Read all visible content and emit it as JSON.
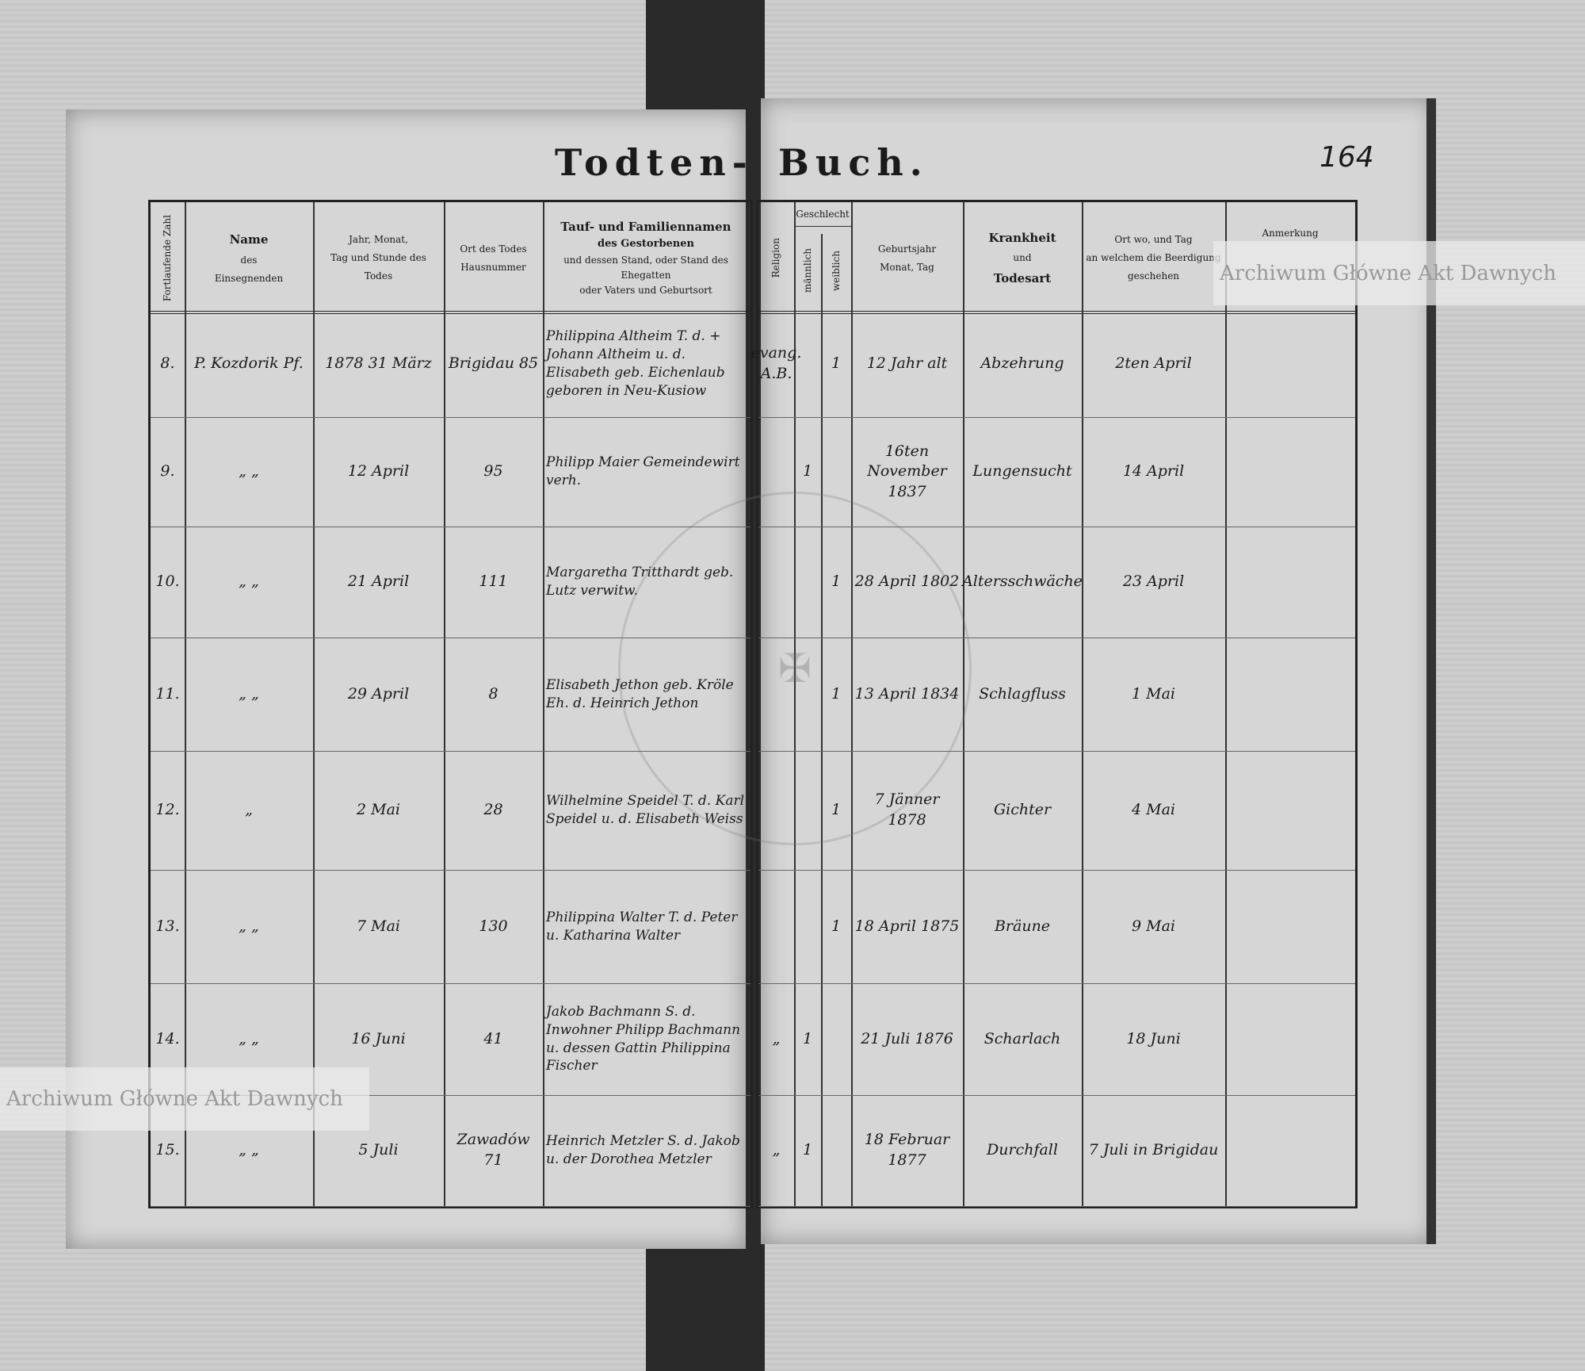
{
  "header": {
    "title_left": "Todten-",
    "title_right": "Buch.",
    "page_number": "164"
  },
  "columns_left": {
    "nr": "Fortlaufende Zahl",
    "name_title": "Name",
    "name_sub1": "des",
    "name_sub2": "Einsegnenden",
    "date1": "Jahr, Monat,",
    "date2": "Tag und Stunde des",
    "date3": "Todes",
    "place1": "Ort des Todes",
    "place2": "Hausnummer",
    "deceased_title": "Tauf- und Familiennamen",
    "deceased_sub": "des Gestorbenen",
    "deceased_2": "und dessen Stand, oder Stand des Ehegatten",
    "deceased_3": "oder Vaters und Geburtsort"
  },
  "columns_right": {
    "religion": "Religion",
    "sex": "Geschlecht",
    "male": "männlich",
    "female": "weiblich",
    "birth1": "Geburtsjahr",
    "birth2": "Monat, Tag",
    "illness1": "Krankheit",
    "illness2": "und",
    "illness3": "Todesart",
    "burial1": "Ort wo, und Tag",
    "burial2": "an welchem die Beerdigung",
    "burial3": "geschehen",
    "remark": "Anmerkung"
  },
  "rows": [
    {
      "nr": "8.",
      "priest": "P. Kozdorik Pf.",
      "date": "1878 31 März",
      "place": "Brigidau 85",
      "deceased": "Philippina Altheim T. d. + Johann Altheim u. d. Elisabeth geb. Eichenlaub geboren in Neu-Kusiow",
      "religion": "evang. A.B.",
      "male": "",
      "female": "1",
      "birth": "12 Jahr alt",
      "illness": "Abzehrung",
      "burial": "2ten April"
    },
    {
      "nr": "9.",
      "priest": "„ „",
      "date": "12 April",
      "place": "95",
      "deceased": "Philipp Maier Gemeindewirt verh.",
      "religion": "",
      "male": "1",
      "female": "",
      "birth": "16ten November 1837",
      "illness": "Lungensucht",
      "burial": "14 April"
    },
    {
      "nr": "10.",
      "priest": "„ „",
      "date": "21 April",
      "place": "111",
      "deceased": "Margaretha Tritthardt geb. Lutz verwitw.",
      "religion": "",
      "male": "",
      "female": "1",
      "birth": "28 April 1802",
      "illness": "Altersschwäche",
      "burial": "23 April"
    },
    {
      "nr": "11.",
      "priest": "„ „",
      "date": "29 April",
      "place": "8",
      "deceased": "Elisabeth Jethon geb. Kröle Eh. d. Heinrich Jethon",
      "religion": "",
      "male": "",
      "female": "1",
      "birth": "13 April 1834",
      "illness": "Schlagfluss",
      "burial": "1 Mai"
    },
    {
      "nr": "12.",
      "priest": "„",
      "date": "2 Mai",
      "place": "28",
      "deceased": "Wilhelmine Speidel T. d. Karl Speidel u. d. Elisabeth Weiss",
      "religion": "",
      "male": "",
      "female": "1",
      "birth": "7 Jänner 1878",
      "illness": "Gichter",
      "burial": "4 Mai"
    },
    {
      "nr": "13.",
      "priest": "„ „",
      "date": "7 Mai",
      "place": "130",
      "deceased": "Philippina Walter T. d. Peter u. Katharina Walter",
      "religion": "",
      "male": "",
      "female": "1",
      "birth": "18 April 1875",
      "illness": "Bräune",
      "burial": "9 Mai"
    },
    {
      "nr": "14.",
      "priest": "„ „",
      "date": "16 Juni",
      "place": "41",
      "deceased": "Jakob Bachmann S. d. Inwohner Philipp Bachmann u. dessen Gattin Philippina Fischer",
      "religion": "„",
      "male": "1",
      "female": "",
      "birth": "21 Juli 1876",
      "illness": "Scharlach",
      "burial": "18 Juni"
    },
    {
      "nr": "15.",
      "priest": "„ „",
      "date": "5 Juli",
      "place": "Zawadów 71",
      "deceased": "Heinrich Metzler S. d. Jakob u. der Dorothea Metzler",
      "religion": "„",
      "male": "1",
      "female": "",
      "birth": "18 Februar 1877",
      "illness": "Durchfall",
      "burial": "7 Juli in Brigidau"
    }
  ],
  "watermark": "Archiwum Główne Akt Dawnych"
}
